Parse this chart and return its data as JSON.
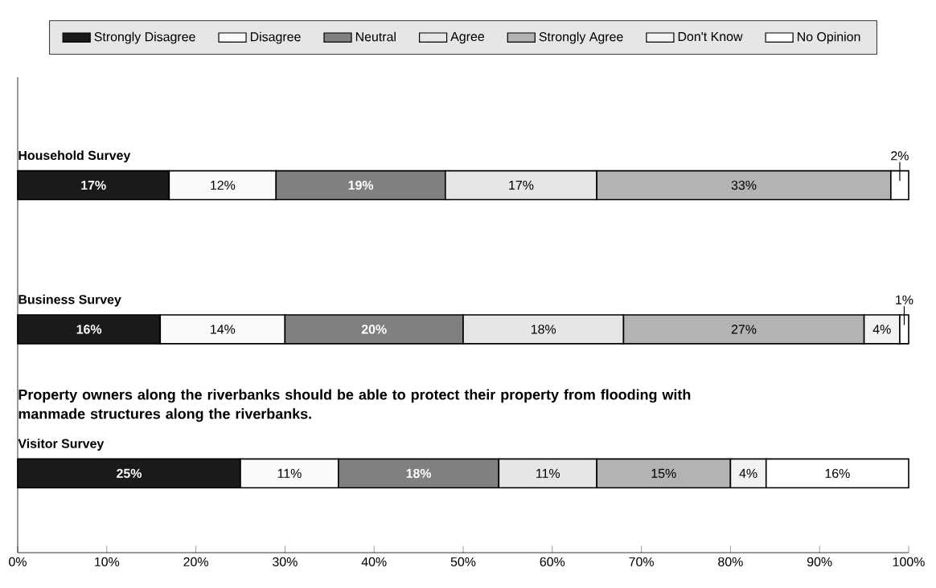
{
  "chart_data": {
    "type": "bar",
    "orientation": "horizontal",
    "stacked": true,
    "categories": [
      "Household Survey",
      "Business Survey",
      "Visitor Survey"
    ],
    "annotations": [
      "Property owners along the riverbanks should be able to protect their property from flooding with manmade structures along the riverbanks."
    ],
    "xlim": [
      0,
      100
    ],
    "xticks": [
      {
        "value": 0,
        "label": "0%"
      },
      {
        "value": 10,
        "label": "10%"
      },
      {
        "value": 20,
        "label": "20%"
      },
      {
        "value": 30,
        "label": "30%"
      },
      {
        "value": 40,
        "label": "40%"
      },
      {
        "value": 50,
        "label": "50%"
      },
      {
        "value": 60,
        "label": "60%"
      },
      {
        "value": 70,
        "label": "70%"
      },
      {
        "value": 80,
        "label": "80%"
      },
      {
        "value": 90,
        "label": "90%"
      },
      {
        "value": 100,
        "label": "100%"
      }
    ],
    "legend": "top",
    "series": [
      {
        "name": "Strongly Disagree",
        "color": "#1a1a1a",
        "values": [
          17,
          16,
          25
        ],
        "value_labels": [
          "17%",
          "16%",
          "25%"
        ]
      },
      {
        "name": "Disagree",
        "color": "#fafafa",
        "values": [
          12,
          14,
          11
        ],
        "value_labels": [
          "12%",
          "14%",
          "11%"
        ]
      },
      {
        "name": "Neutral",
        "color": "#808080",
        "values": [
          19,
          20,
          18
        ],
        "value_labels": [
          "19%",
          "20%",
          "18%"
        ]
      },
      {
        "name": "Agree",
        "color": "#e6e6e6",
        "values": [
          17,
          18,
          11
        ],
        "value_labels": [
          "17%",
          "18%",
          "11%"
        ]
      },
      {
        "name": "Strongly Agree",
        "color": "#b3b3b3",
        "values": [
          33,
          27,
          15
        ],
        "value_labels": [
          "33%",
          "27%",
          "15%"
        ]
      },
      {
        "name": "Don't Know",
        "color": "#f2f2f2",
        "values": [
          null,
          4,
          4
        ],
        "value_labels": [
          null,
          "4%",
          "4%"
        ]
      },
      {
        "name": "No Opinion",
        "color": "#ffffff",
        "values": [
          2,
          1,
          16
        ],
        "value_labels": [
          "2%",
          "1%",
          "16%"
        ]
      }
    ]
  }
}
